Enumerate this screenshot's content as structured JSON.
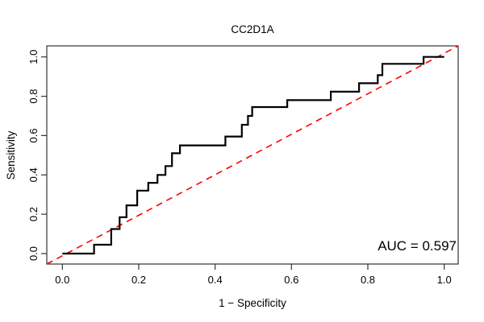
{
  "title": "CC2D1A",
  "annotation": {
    "auc_label": "AUC = 0.597"
  },
  "axes": {
    "x": {
      "label": "1 − Specificity",
      "ticks": [
        "0.0",
        "0.2",
        "0.4",
        "0.6",
        "0.8",
        "1.0"
      ]
    },
    "y": {
      "label": "Sensitivity",
      "ticks": [
        "0.0",
        "0.2",
        "0.4",
        "0.6",
        "0.8",
        "1.0"
      ]
    }
  },
  "colors": {
    "curve": "#000000",
    "diagonal": "#ff0000",
    "axis": "#333333",
    "background": "#ffffff"
  },
  "chart_data": {
    "type": "line",
    "subtype": "ROC step curve",
    "title": "CC2D1A",
    "xlabel": "1 − Specificity",
    "ylabel": "Sensitivity",
    "xlim": [
      0,
      1
    ],
    "ylim": [
      0,
      1
    ],
    "grid": false,
    "legend": "none",
    "auc": 0.597,
    "series": [
      {
        "name": "ROC curve",
        "style": "solid black step, lwd 2",
        "points": [
          [
            0.0,
            0.0
          ],
          [
            0.083,
            0.0
          ],
          [
            0.083,
            0.045
          ],
          [
            0.128,
            0.045
          ],
          [
            0.128,
            0.125
          ],
          [
            0.15,
            0.125
          ],
          [
            0.15,
            0.185
          ],
          [
            0.168,
            0.185
          ],
          [
            0.168,
            0.245
          ],
          [
            0.196,
            0.245
          ],
          [
            0.196,
            0.32
          ],
          [
            0.225,
            0.32
          ],
          [
            0.225,
            0.36
          ],
          [
            0.249,
            0.36
          ],
          [
            0.249,
            0.4
          ],
          [
            0.27,
            0.4
          ],
          [
            0.27,
            0.445
          ],
          [
            0.287,
            0.445
          ],
          [
            0.287,
            0.51
          ],
          [
            0.308,
            0.51
          ],
          [
            0.308,
            0.55
          ],
          [
            0.427,
            0.55
          ],
          [
            0.427,
            0.595
          ],
          [
            0.47,
            0.595
          ],
          [
            0.47,
            0.655
          ],
          [
            0.486,
            0.655
          ],
          [
            0.486,
            0.7
          ],
          [
            0.497,
            0.7
          ],
          [
            0.497,
            0.745
          ],
          [
            0.589,
            0.745
          ],
          [
            0.589,
            0.78
          ],
          [
            0.703,
            0.78
          ],
          [
            0.703,
            0.823
          ],
          [
            0.777,
            0.823
          ],
          [
            0.777,
            0.866
          ],
          [
            0.826,
            0.866
          ],
          [
            0.826,
            0.907
          ],
          [
            0.838,
            0.907
          ],
          [
            0.838,
            0.965
          ],
          [
            0.946,
            0.965
          ],
          [
            0.946,
            1.0
          ],
          [
            1.0,
            1.0
          ]
        ]
      },
      {
        "name": "chance diagonal",
        "style": "dashed red reference line y = x",
        "points": [
          [
            0,
            0
          ],
          [
            1,
            1
          ]
        ]
      }
    ]
  }
}
